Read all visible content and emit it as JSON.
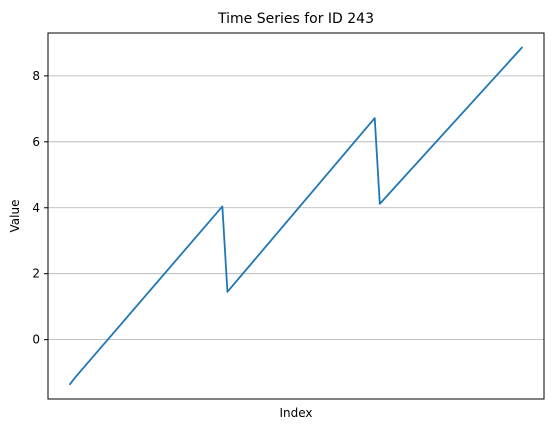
{
  "chart_data": {
    "type": "line",
    "title": "Time Series for ID 243",
    "xlabel": "Index",
    "ylabel": "Value",
    "ylim": [
      -1.8,
      9.3
    ],
    "grid": "horizontal",
    "xticks_visible": false,
    "y_ticks": [
      0,
      2,
      4,
      6,
      8
    ],
    "series": [
      {
        "color": "#1f77b4",
        "x": [
          0,
          1,
          30,
          31,
          60,
          61,
          89
        ],
        "y": [
          -1.35,
          -1.15,
          4.04,
          1.45,
          6.72,
          4.12,
          8.86
        ]
      }
    ]
  }
}
